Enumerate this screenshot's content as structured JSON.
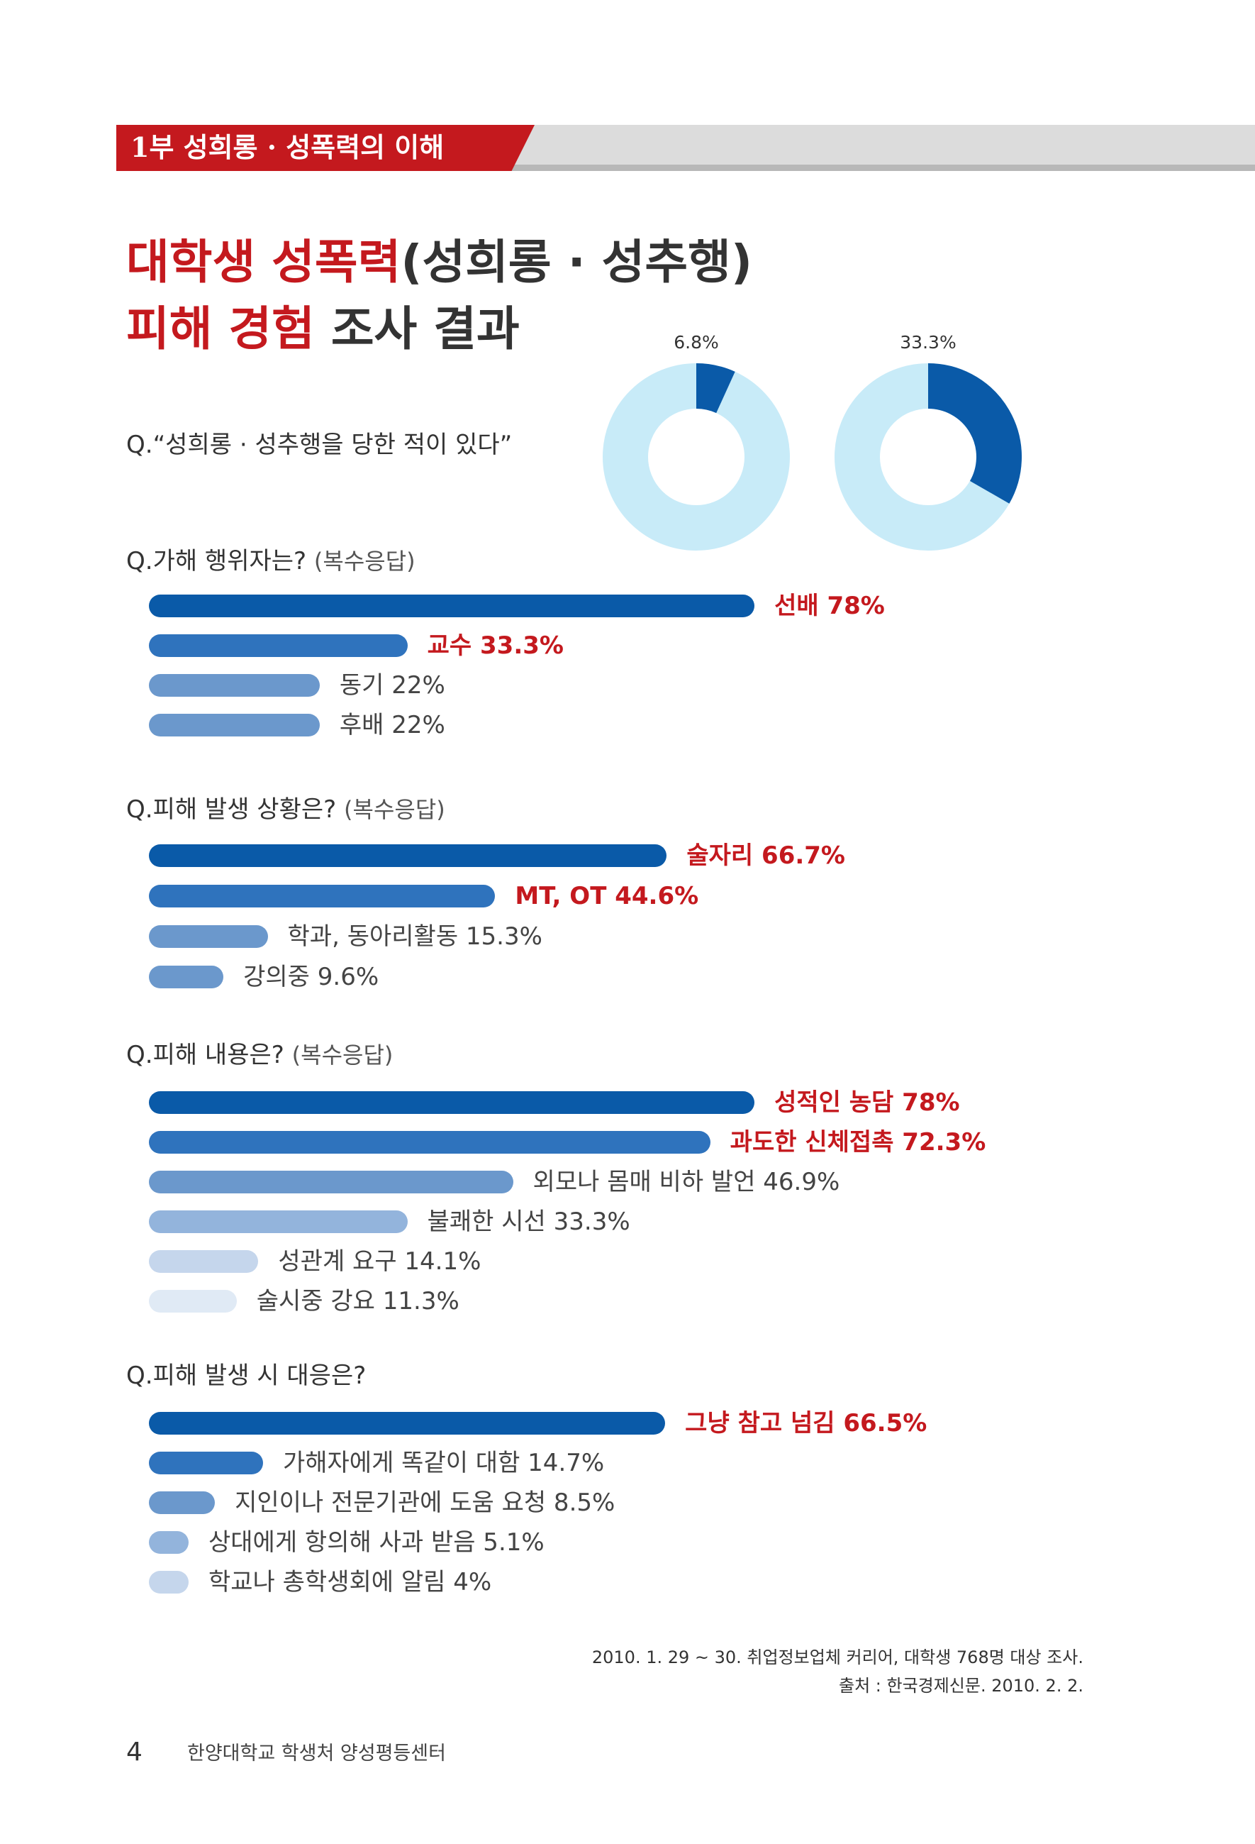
{
  "header": {
    "section": "1부  성희롱 · 성폭력의 이해"
  },
  "title": {
    "line1_red": "대학생 성폭력",
    "line1_rest": "(성희롱 · 성추행)",
    "line2_red": "피해 경험",
    "line2_rest": " 조사 결과"
  },
  "colors": {
    "accent_red": "#c4191e",
    "donut_value": "#0a5aa8",
    "donut_rest": "#c8ebf8",
    "shades": [
      "#0a5aa8",
      "#2f73bd",
      "#6b98cc",
      "#93b4dc",
      "#c5d6ec",
      "#e0eaf5"
    ]
  },
  "chart_data": [
    {
      "type": "pie",
      "question": "Q.“성희롱 · 성추행을 당한 적이 있다”",
      "slices": [
        {
          "label": "6.8%",
          "value": 6.8
        },
        {
          "label": "33.3%",
          "value": 33.3
        }
      ]
    },
    {
      "type": "bar",
      "question": "Q.가해 행위자는?",
      "note": "(복수응답)",
      "categories": [
        "선배 78%",
        "교수 33.3%",
        "동기 22%",
        "후배 22%"
      ],
      "values": [
        78,
        33.3,
        22,
        22
      ],
      "highlight": [
        true,
        true,
        false,
        false
      ],
      "shade": [
        0,
        1,
        2,
        2
      ]
    },
    {
      "type": "bar",
      "question": "Q.피해 발생 상황은?",
      "note": "(복수응답)",
      "categories": [
        "술자리 66.7%",
        "MT, OT 44.6%",
        "학과, 동아리활동 15.3%",
        "강의중 9.6%"
      ],
      "values": [
        66.7,
        44.6,
        15.3,
        9.6
      ],
      "highlight": [
        true,
        true,
        false,
        false
      ],
      "shade": [
        0,
        1,
        2,
        2
      ]
    },
    {
      "type": "bar",
      "question": "Q.피해 내용은?",
      "note": "(복수응답)",
      "categories": [
        "성적인 농담 78%",
        "과도한 신체접촉 72.3%",
        "외모나 몸매 비하 발언 46.9%",
        "불쾌한 시선 33.3%",
        "성관계 요구 14.1%",
        "술시중 강요 11.3%"
      ],
      "values": [
        78,
        72.3,
        46.9,
        33.3,
        14.1,
        11.3
      ],
      "highlight": [
        true,
        true,
        false,
        false,
        false,
        false
      ],
      "shade": [
        0,
        1,
        2,
        3,
        4,
        5
      ]
    },
    {
      "type": "bar",
      "question": "Q.피해 발생 시 대응은?",
      "note": "",
      "categories": [
        "그냥 참고 넘김 66.5%",
        "가해자에게 똑같이 대함 14.7%",
        "지인이나 전문기관에 도움 요청 8.5%",
        "상대에게 항의해 사과 받음 5.1%",
        "학교나 총학생회에 알림 4%"
      ],
      "values": [
        66.5,
        14.7,
        8.5,
        5.1,
        4
      ],
      "highlight": [
        true,
        false,
        false,
        false,
        false
      ],
      "shade": [
        0,
        1,
        2,
        3,
        4
      ]
    }
  ],
  "source": {
    "line1": "2010. 1. 29 ~ 30. 취업정보업체 커리어, 대학생 768명 대상 조사.",
    "line2": "출처 : 한국경제신문. 2010. 2. 2."
  },
  "footer": {
    "page": "4",
    "org": "한양대학교 학생처 양성평등센터"
  }
}
